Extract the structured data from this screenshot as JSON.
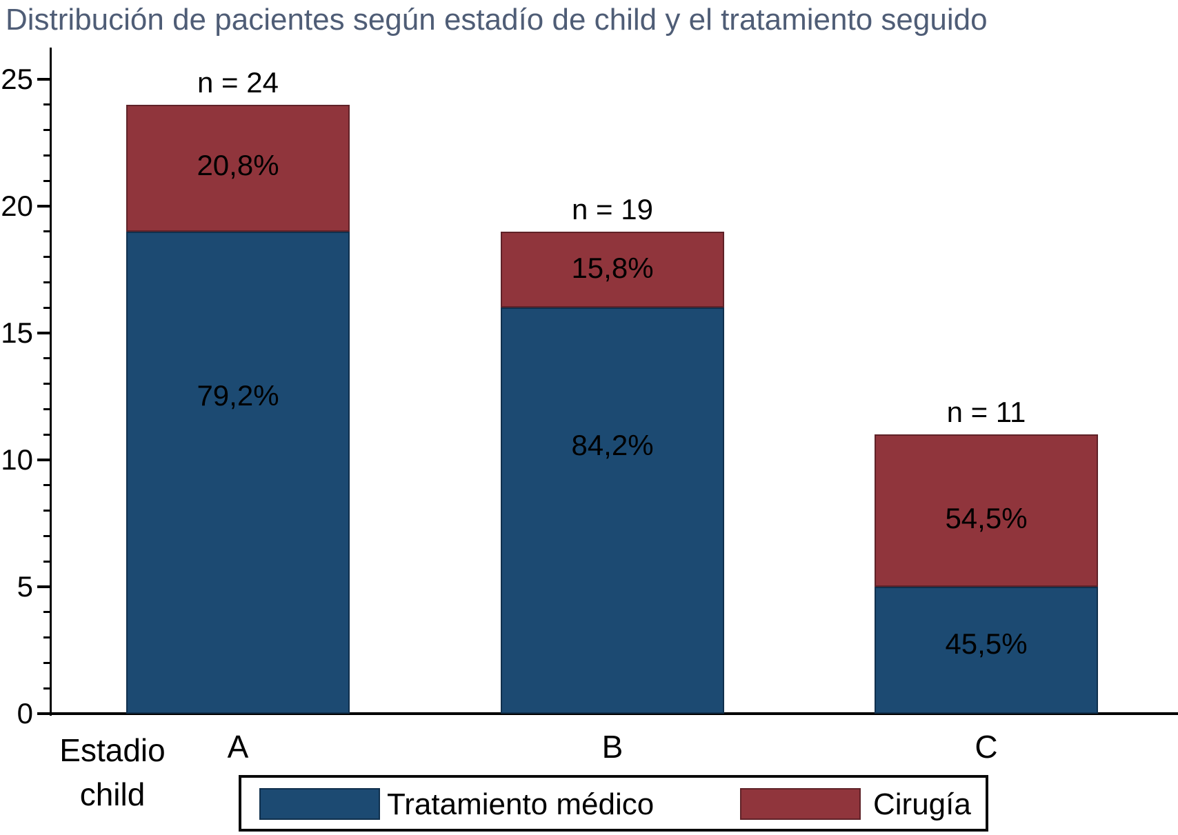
{
  "chart_data": {
    "type": "bar",
    "stacked": true,
    "title": "Distribución de pacientes según estadío de child y el tratamiento seguido",
    "title_color": "#4F5D76",
    "categories": [
      "A",
      "B",
      "C"
    ],
    "x_axis_label_lines": [
      "Estadio",
      "child"
    ],
    "series": [
      {
        "name": "Tratamiento médico",
        "color": "#1C4A72",
        "border_color": "#10304d",
        "values": [
          19,
          16,
          5
        ],
        "percent_labels": [
          "79,2%",
          "84,2%",
          "45,5%"
        ]
      },
      {
        "name": "Cirugía",
        "color": "#90353C",
        "border_color": "#5f2228",
        "values": [
          5,
          3,
          6
        ],
        "percent_labels": [
          "20,8%",
          "15,8%",
          "54,5%"
        ]
      }
    ],
    "totals": [
      24,
      19,
      11
    ],
    "totals_labels": [
      "n = 24",
      "n = 19",
      "n = 11"
    ],
    "y_ticks": [
      0,
      5,
      10,
      15,
      20,
      25
    ],
    "minor_tick_step": 1,
    "ylim": [
      0,
      25
    ],
    "grid": false,
    "legend_position": "bottom",
    "axis_color": "#000000"
  }
}
